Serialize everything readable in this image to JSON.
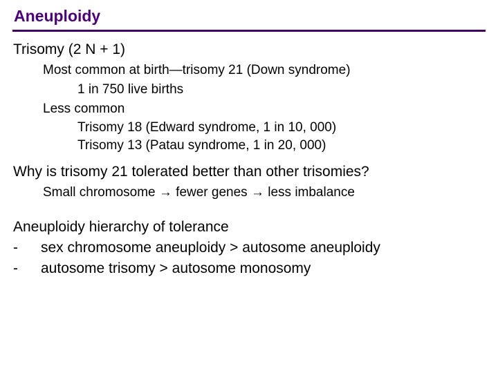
{
  "title": "Aneuploidy",
  "trisomy_heading": "Trisomy (2 N + 1)",
  "common_line": "Most common at birth—trisomy 21 (Down syndrome)",
  "common_rate": "1 in 750 live births",
  "less_common_label": "Less common",
  "trisomy18": "Trisomy 18 (Edward syndrome, 1 in 10, 000)",
  "trisomy13": "Trisomy 13 (Patau syndrome, 1 in 20, 000)",
  "question": "Why is trisomy 21 tolerated better than other trisomies?",
  "explain_a": "Small chromosome ",
  "explain_b": " fewer genes ",
  "explain_c": " less imbalance",
  "hierarchy_heading": "Aneuploidy hierarchy of tolerance",
  "dash": "-",
  "h1": "sex chromosome aneuploidy > autosome aneuploidy",
  "h2": "autosome trisomy > autosome monosomy",
  "colors": {
    "title": "#4b0082",
    "rule": "#3b0064",
    "body": "#000000",
    "background": "#ffffff"
  },
  "fontsizes": {
    "title": 23,
    "heading": 21,
    "body": 19
  }
}
